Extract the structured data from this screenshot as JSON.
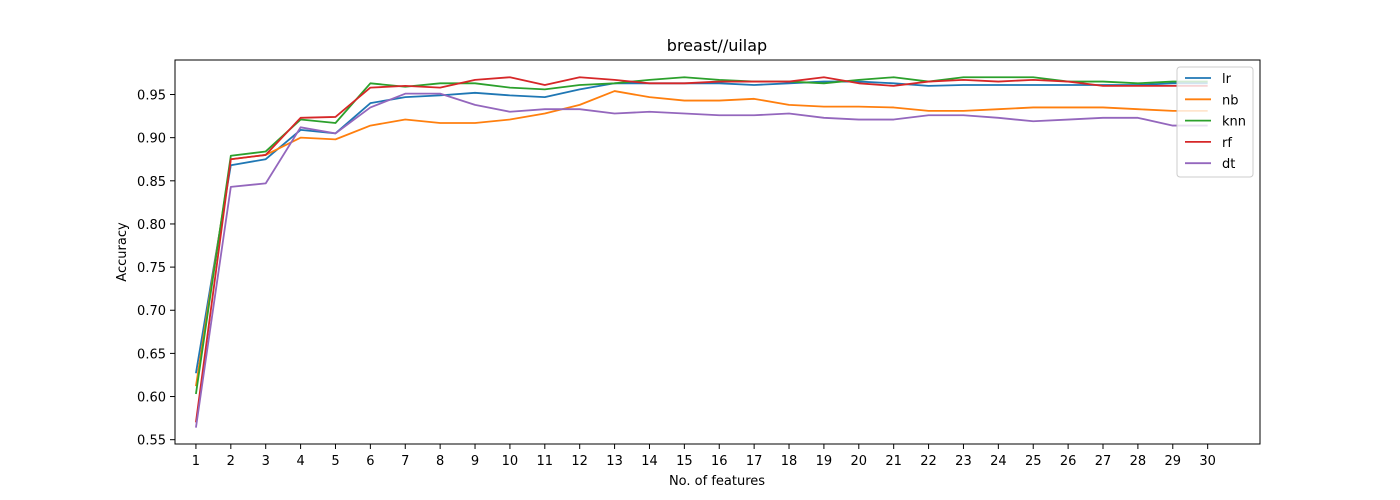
{
  "chart_data": {
    "type": "line",
    "title": "breast//uilap",
    "xlabel": "No. of features",
    "ylabel": "Accuracy",
    "x": [
      1,
      2,
      3,
      4,
      5,
      6,
      7,
      8,
      9,
      10,
      11,
      12,
      13,
      14,
      15,
      16,
      17,
      18,
      19,
      20,
      21,
      22,
      23,
      24,
      25,
      26,
      27,
      28,
      29,
      30
    ],
    "xlim": [
      0.4,
      31.5
    ],
    "ylim": [
      0.545,
      0.99
    ],
    "yticks": [
      0.55,
      0.6,
      0.65,
      0.7,
      0.75,
      0.8,
      0.85,
      0.9,
      0.95
    ],
    "ytick_labels": [
      "0.55",
      "0.60",
      "0.65",
      "0.70",
      "0.75",
      "0.80",
      "0.85",
      "0.90",
      "0.95"
    ],
    "grid": false,
    "legend_position": "top-right",
    "series": [
      {
        "name": "lr",
        "color": "#1f77b4",
        "values": [
          0.627,
          0.868,
          0.875,
          0.909,
          0.905,
          0.94,
          0.947,
          0.949,
          0.952,
          0.949,
          0.947,
          0.956,
          0.963,
          0.963,
          0.963,
          0.963,
          0.961,
          0.963,
          0.965,
          0.965,
          0.963,
          0.96,
          0.961,
          0.961,
          0.961,
          0.961,
          0.961,
          0.961,
          0.963,
          0.963
        ]
      },
      {
        "name": "nb",
        "color": "#ff7f0e",
        "values": [
          0.612,
          0.875,
          0.88,
          0.9,
          0.898,
          0.914,
          0.921,
          0.917,
          0.917,
          0.921,
          0.928,
          0.938,
          0.954,
          0.947,
          0.943,
          0.943,
          0.945,
          0.938,
          0.936,
          0.936,
          0.935,
          0.931,
          0.931,
          0.933,
          0.935,
          0.935,
          0.935,
          0.933,
          0.931,
          0.931
        ]
      },
      {
        "name": "knn",
        "color": "#2ca02c",
        "values": [
          0.603,
          0.879,
          0.884,
          0.921,
          0.917,
          0.963,
          0.959,
          0.963,
          0.963,
          0.958,
          0.956,
          0.961,
          0.963,
          0.967,
          0.97,
          0.967,
          0.965,
          0.965,
          0.963,
          0.967,
          0.97,
          0.965,
          0.97,
          0.97,
          0.97,
          0.965,
          0.965,
          0.963,
          0.965,
          0.965
        ]
      },
      {
        "name": "rf",
        "color": "#d62728",
        "values": [
          0.57,
          0.875,
          0.88,
          0.923,
          0.924,
          0.958,
          0.96,
          0.958,
          0.967,
          0.97,
          0.961,
          0.97,
          0.967,
          0.963,
          0.963,
          0.965,
          0.965,
          0.965,
          0.97,
          0.963,
          0.96,
          0.965,
          0.967,
          0.965,
          0.967,
          0.965,
          0.96,
          0.96,
          0.96,
          0.96
        ]
      },
      {
        "name": "dt",
        "color": "#9467bd",
        "values": [
          0.564,
          0.843,
          0.847,
          0.912,
          0.905,
          0.935,
          0.951,
          0.951,
          0.938,
          0.93,
          0.933,
          0.933,
          0.928,
          0.93,
          0.928,
          0.926,
          0.926,
          0.928,
          0.923,
          0.921,
          0.921,
          0.926,
          0.926,
          0.923,
          0.919,
          0.921,
          0.923,
          0.923,
          0.914,
          0.914
        ]
      }
    ]
  }
}
